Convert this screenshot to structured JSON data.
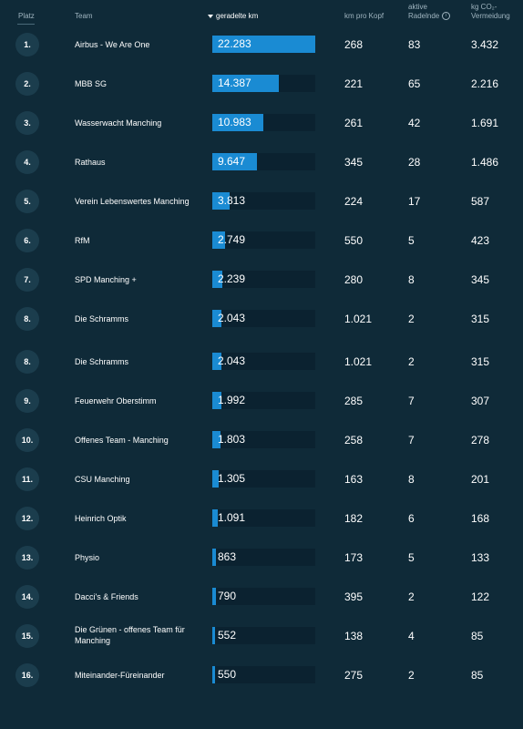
{
  "header": {
    "rank": "Platz",
    "team": "Team",
    "km": "geradelte km",
    "per_head": "km pro Kopf",
    "active_line1": "aktive",
    "active_line2": "Radelnde",
    "info_glyph": "i",
    "co2_line1": "kg CO₂-",
    "co2_line2": "Vermeidung"
  },
  "colors": {
    "background": "#0f2a38",
    "bar_fill": "#1a8bd3",
    "bar_track": "#0b2230",
    "rank_circle": "#1b3d4d"
  },
  "max_km": 22283,
  "rows": [
    {
      "rank": "1.",
      "team": "Airbus - We Are One",
      "km_label": "22.283",
      "km": 22283,
      "per_head": "268",
      "active": "83",
      "co2": "3.432"
    },
    {
      "rank": "2.",
      "team": "MBB SG",
      "km_label": "14.387",
      "km": 14387,
      "per_head": "221",
      "active": "65",
      "co2": "2.216"
    },
    {
      "rank": "3.",
      "team": "Wasserwacht Manching",
      "km_label": "10.983",
      "km": 10983,
      "per_head": "261",
      "active": "42",
      "co2": "1.691"
    },
    {
      "rank": "4.",
      "team": "Rathaus",
      "km_label": "9.647",
      "km": 9647,
      "per_head": "345",
      "active": "28",
      "co2": "1.486"
    },
    {
      "rank": "5.",
      "team": "Verein Lebenswertes Manching",
      "km_label": "3.813",
      "km": 3813,
      "per_head": "224",
      "active": "17",
      "co2": "587"
    },
    {
      "rank": "6.",
      "team": "RfM",
      "km_label": "2.749",
      "km": 2749,
      "per_head": "550",
      "active": "5",
      "co2": "423"
    },
    {
      "rank": "7.",
      "team": "SPD Manching +",
      "km_label": "2.239",
      "km": 2239,
      "per_head": "280",
      "active": "8",
      "co2": "345"
    },
    {
      "rank": "8.",
      "team": "Die Schramms",
      "km_label": "2.043",
      "km": 2043,
      "per_head": "1.021",
      "active": "2",
      "co2": "315"
    },
    {
      "rank": "8.",
      "team": "Die Schramms",
      "km_label": "2.043",
      "km": 2043,
      "per_head": "1.021",
      "active": "2",
      "co2": "315"
    },
    {
      "rank": "9.",
      "team": "Feuerwehr Oberstimm",
      "km_label": "1.992",
      "km": 1992,
      "per_head": "285",
      "active": "7",
      "co2": "307"
    },
    {
      "rank": "10.",
      "team": "Offenes Team - Manching",
      "km_label": "1.803",
      "km": 1803,
      "per_head": "258",
      "active": "7",
      "co2": "278"
    },
    {
      "rank": "11.",
      "team": "CSU Manching",
      "km_label": "1.305",
      "km": 1305,
      "per_head": "163",
      "active": "8",
      "co2": "201"
    },
    {
      "rank": "12.",
      "team": "Heinrich Optik",
      "km_label": "1.091",
      "km": 1091,
      "per_head": "182",
      "active": "6",
      "co2": "168"
    },
    {
      "rank": "13.",
      "team": "Physio",
      "km_label": "863",
      "km": 863,
      "per_head": "173",
      "active": "5",
      "co2": "133"
    },
    {
      "rank": "14.",
      "team": "Dacci's & Friends",
      "km_label": "790",
      "km": 790,
      "per_head": "395",
      "active": "2",
      "co2": "122"
    },
    {
      "rank": "15.",
      "team": "Die Grünen - offenes Team für Manching",
      "km_label": "552",
      "km": 552,
      "per_head": "138",
      "active": "4",
      "co2": "85"
    },
    {
      "rank": "16.",
      "team": "Miteinander-Füreinander",
      "km_label": "550",
      "km": 550,
      "per_head": "275",
      "active": "2",
      "co2": "85"
    }
  ]
}
